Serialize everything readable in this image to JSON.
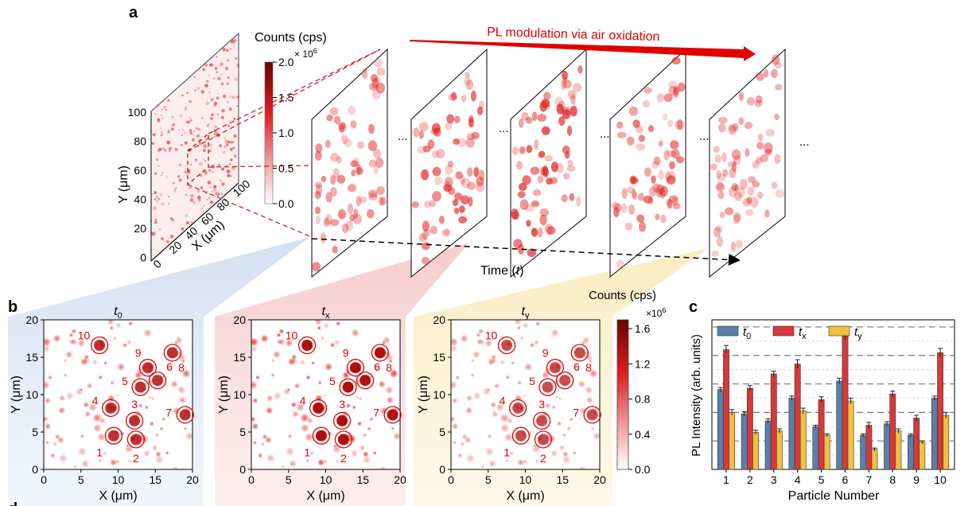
{
  "panel_a": {
    "letter": "a",
    "colorbar_title": "Counts (cps)",
    "colorbar_multiplier": "× 10",
    "colorbar_exponent": "6",
    "colorbar_ticks": [
      "2.0",
      "1.5",
      "1.0",
      "0.5",
      "0.0"
    ],
    "y_axis_label": "Y (μm)",
    "x_axis_label": "X (μm)",
    "y_ticks": [
      "100",
      "80",
      "60",
      "40",
      "20",
      "0"
    ],
    "x_ticks": [
      "0",
      "20",
      "40",
      "60",
      "80",
      "100"
    ],
    "arrow_label": "PL modulation via air oxidation",
    "time_label": "Time (",
    "time_var": "t",
    "time_label_close": ")",
    "ellipsis": "..."
  },
  "panel_b": {
    "letter": "b",
    "maps": [
      {
        "title_var": "t",
        "title_sub": "0"
      },
      {
        "title_var": "t",
        "title_sub": "x"
      },
      {
        "title_var": "t",
        "title_sub": "y"
      }
    ],
    "x_label": "X (μm)",
    "y_label": "Y (μm)",
    "ticks": [
      "0",
      "5",
      "10",
      "15",
      "20"
    ],
    "colorbar_title": "Counts (cps)",
    "colorbar_multiplier": "×10",
    "colorbar_exponent": "6",
    "colorbar_ticks": [
      "1.6",
      "1.2",
      "0.8",
      "0.4",
      "0.0"
    ],
    "particle_labels": [
      "1",
      "2",
      "3",
      "4",
      "5",
      "6",
      "7",
      "8",
      "9",
      "10"
    ]
  },
  "panel_c": {
    "letter": "c",
    "ylabel": "PL Intensity (arb. units)",
    "xlabel": "Particle Number"
  },
  "panel_d": {
    "letter": "d"
  },
  "colors": {
    "t0": "#5b7fa8",
    "tx": "#d9383a",
    "ty": "#f0c040",
    "map_red": "#d81e1e",
    "annotation_red": "#e00000"
  },
  "chart_data": {
    "type": "bar",
    "categories": [
      "1",
      "2",
      "3",
      "4",
      "5",
      "6",
      "7",
      "8",
      "9",
      "10"
    ],
    "series": [
      {
        "name": "t0",
        "name_var": "t",
        "name_sub": "0",
        "values": [
          5.6,
          3.9,
          3.4,
          5.0,
          3.0,
          6.2,
          2.4,
          3.2,
          2.4,
          5.0
        ],
        "errors": [
          0.15,
          0.15,
          0.15,
          0.15,
          0.1,
          0.2,
          0.1,
          0.15,
          0.1,
          0.15
        ]
      },
      {
        "name": "tx",
        "name_var": "t",
        "name_sub": "x",
        "values": [
          8.4,
          5.7,
          6.7,
          7.4,
          4.9,
          9.4,
          3.1,
          5.3,
          3.6,
          8.2
        ],
        "errors": [
          0.3,
          0.2,
          0.2,
          0.3,
          0.2,
          0.3,
          0.2,
          0.2,
          0.2,
          0.3
        ]
      },
      {
        "name": "ty",
        "name_var": "t",
        "name_sub": "y",
        "values": [
          4.0,
          2.6,
          2.7,
          4.1,
          2.4,
          4.8,
          1.4,
          2.7,
          1.9,
          3.8
        ],
        "errors": [
          0.2,
          0.15,
          0.15,
          0.2,
          0.1,
          0.2,
          0.1,
          0.15,
          0.1,
          0.2
        ]
      }
    ],
    "xlabel": "Particle Number",
    "ylabel": "PL Intensity (arb. units)",
    "ylim": [
      0,
      10.5
    ],
    "grid": "dashed horizontal",
    "legend": "top"
  }
}
